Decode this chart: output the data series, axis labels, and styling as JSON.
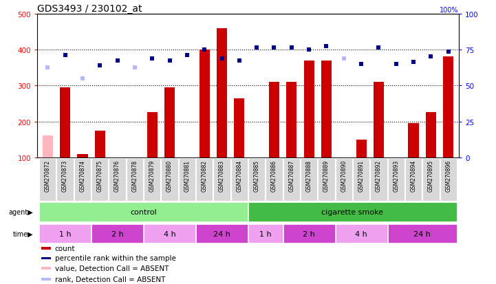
{
  "title": "GDS3493 / 230102_at",
  "gsm_ids": [
    "GSM270872",
    "GSM270873",
    "GSM270874",
    "GSM270875",
    "GSM270876",
    "GSM270878",
    "GSM270879",
    "GSM270880",
    "GSM270881",
    "GSM270882",
    "GSM270883",
    "GSM270884",
    "GSM270885",
    "GSM270886",
    "GSM270887",
    "GSM270888",
    "GSM270889",
    "GSM270890",
    "GSM270891",
    "GSM270892",
    "GSM270893",
    "GSM270894",
    "GSM270895",
    "GSM270896"
  ],
  "count_values": [
    160,
    295,
    110,
    175,
    null,
    null,
    225,
    295,
    null,
    400,
    460,
    265,
    null,
    310,
    310,
    370,
    370,
    null,
    150,
    310,
    null,
    195,
    225,
    380
  ],
  "count_absent": [
    true,
    false,
    false,
    false,
    true,
    true,
    false,
    false,
    true,
    false,
    false,
    false,
    true,
    false,
    false,
    false,
    false,
    true,
    false,
    false,
    true,
    false,
    false,
    false
  ],
  "rank_values": [
    350,
    385,
    320,
    355,
    370,
    350,
    375,
    370,
    385,
    400,
    375,
    370,
    405,
    405,
    405,
    400,
    410,
    375,
    360,
    405,
    360,
    365,
    380,
    395
  ],
  "rank_absent": [
    true,
    false,
    true,
    false,
    false,
    true,
    false,
    false,
    false,
    false,
    false,
    false,
    false,
    false,
    false,
    false,
    false,
    true,
    false,
    false,
    false,
    false,
    false,
    false
  ],
  "agent_groups": [
    {
      "label": "control",
      "start": 0,
      "end": 11,
      "color": "#90ee90"
    },
    {
      "label": "cigarette smoke",
      "start": 12,
      "end": 23,
      "color": "#44bb44"
    }
  ],
  "time_groups": [
    {
      "label": "1 h",
      "start": 0,
      "end": 2,
      "color": "#f0a0f0"
    },
    {
      "label": "2 h",
      "start": 3,
      "end": 5,
      "color": "#cc44cc"
    },
    {
      "label": "4 h",
      "start": 6,
      "end": 8,
      "color": "#f0a0f0"
    },
    {
      "label": "24 h",
      "start": 9,
      "end": 11,
      "color": "#cc44cc"
    },
    {
      "label": "1 h",
      "start": 12,
      "end": 13,
      "color": "#f0a0f0"
    },
    {
      "label": "2 h",
      "start": 14,
      "end": 16,
      "color": "#cc44cc"
    },
    {
      "label": "4 h",
      "start": 17,
      "end": 19,
      "color": "#f0a0f0"
    },
    {
      "label": "24 h",
      "start": 20,
      "end": 23,
      "color": "#cc44cc"
    }
  ],
  "bar_color_present": "#cc0000",
  "bar_color_absent": "#ffb6c1",
  "rank_color_present": "#00008b",
  "rank_color_absent": "#b8b8ff",
  "ylim_left": [
    100,
    500
  ],
  "ylim_right": [
    0,
    100
  ],
  "title_fontsize": 10,
  "legend_items": [
    {
      "label": "count",
      "color": "#cc0000"
    },
    {
      "label": "percentile rank within the sample",
      "color": "#00008b"
    },
    {
      "label": "value, Detection Call = ABSENT",
      "color": "#ffb6c1"
    },
    {
      "label": "rank, Detection Call = ABSENT",
      "color": "#b8b8ff"
    }
  ]
}
